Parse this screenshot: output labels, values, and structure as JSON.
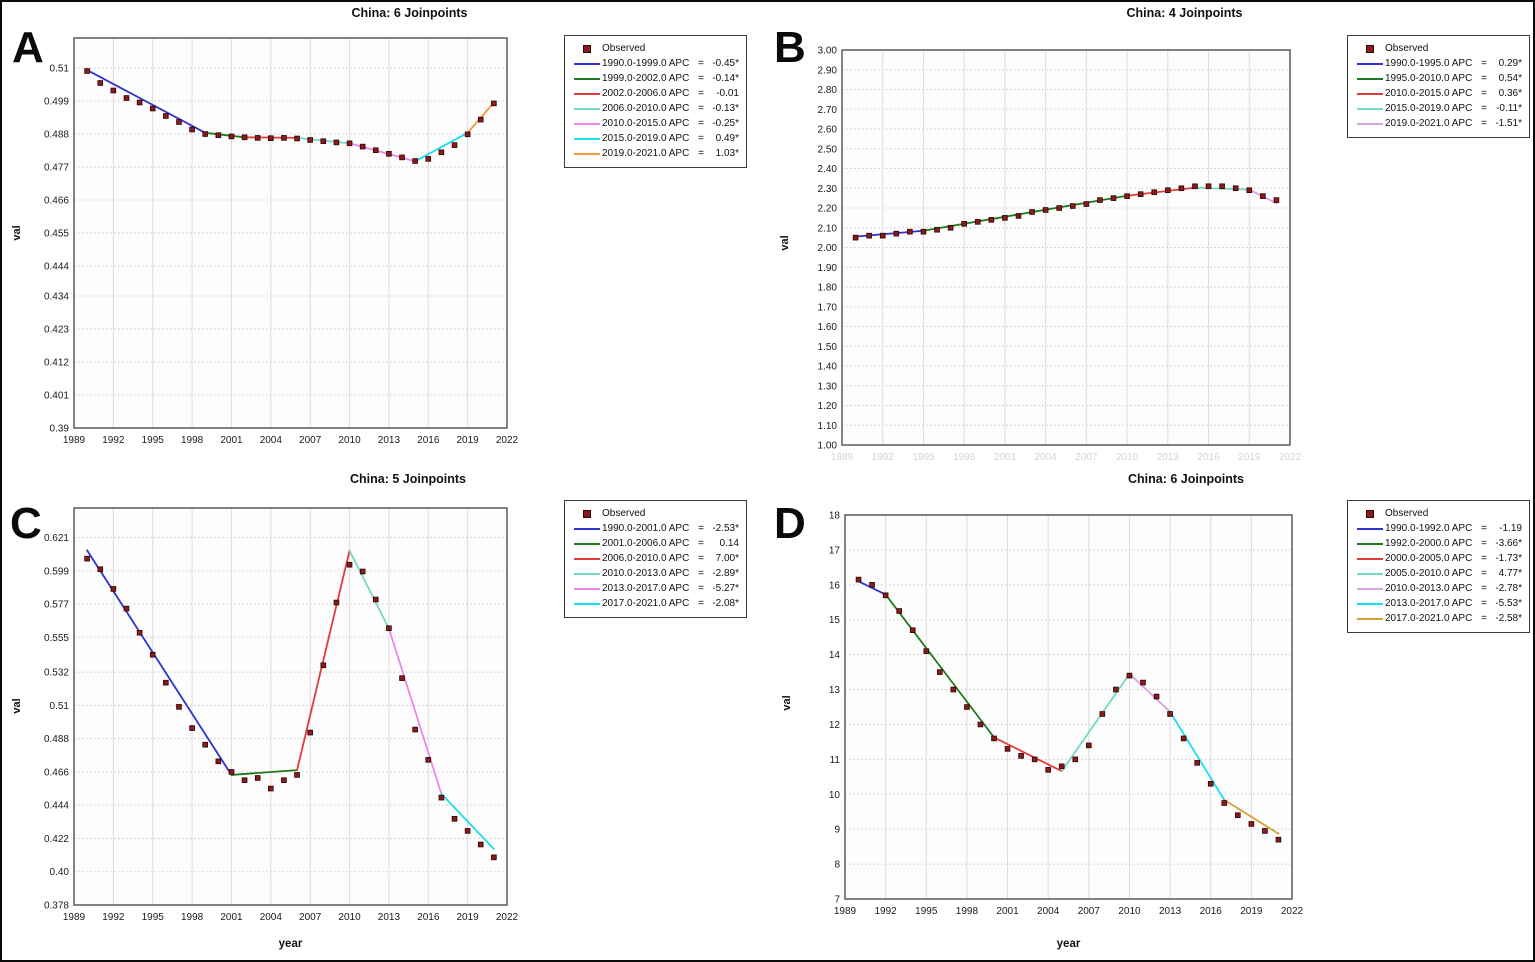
{
  "figure": {
    "background": "#ffffff",
    "border_color": "#0a0a0a",
    "observed_marker_color": "#8b1a1a"
  },
  "chart_data": [
    {
      "type": "line",
      "panel_label": "A",
      "title": "China: 6 Joinpoints",
      "xlabel": "",
      "ylabel": "val",
      "legend_observed_label": "Observed",
      "xlim": [
        1989,
        2022
      ],
      "ylim": [
        0.39,
        0.52
      ],
      "x_ticks": [
        1989,
        1992,
        1995,
        1998,
        2001,
        2004,
        2007,
        2010,
        2013,
        2016,
        2019,
        2022
      ],
      "x_tick_faint": false,
      "y_ticks": [
        "0.51",
        "0.499",
        "0.488",
        "0.477",
        "0.466",
        "0.455",
        "0.444",
        "0.434",
        "0.423",
        "0.412",
        "0.401",
        "0.39"
      ],
      "years": [
        1990,
        1991,
        1992,
        1993,
        1994,
        1995,
        1996,
        1997,
        1998,
        1999,
        2000,
        2001,
        2002,
        2003,
        2004,
        2005,
        2006,
        2007,
        2008,
        2009,
        2010,
        2011,
        2012,
        2013,
        2014,
        2015,
        2016,
        2017,
        2018,
        2019,
        2020,
        2021
      ],
      "values": [
        0.509,
        0.505,
        0.5025,
        0.5,
        0.4985,
        0.4965,
        0.494,
        0.492,
        0.4895,
        0.488,
        0.4876,
        0.4872,
        0.4869,
        0.4867,
        0.4866,
        0.4867,
        0.4865,
        0.486,
        0.4856,
        0.4852,
        0.4849,
        0.4838,
        0.4826,
        0.4814,
        0.4802,
        0.479,
        0.4797,
        0.4819,
        0.4843,
        0.4879,
        0.4928,
        0.4982
      ],
      "segments": [
        {
          "label": "1990.0-1999.0 APC",
          "value": "-0.45*",
          "color": "#3032cf",
          "x1": 1990,
          "y1": 0.5093,
          "x2": 1999,
          "y2": 0.4884
        },
        {
          "label": "1999.0-2002.0 APC",
          "value": "-0.14*",
          "color": "#1f7a1f",
          "x1": 1999,
          "y1": 0.4884,
          "x2": 2002,
          "y2": 0.4869
        },
        {
          "label": "2002.0-2006.0 APC",
          "value": "-0.01",
          "color": "#e23b3b",
          "x1": 2002,
          "y1": 0.4869,
          "x2": 2006,
          "y2": 0.4867
        },
        {
          "label": "2006.0-2010.0 APC",
          "value": "-0.13*",
          "color": "#74d7c8",
          "x1": 2006,
          "y1": 0.4867,
          "x2": 2010,
          "y2": 0.4849
        },
        {
          "label": "2010.0-2015.0 APC",
          "value": "-0.25*",
          "color": "#ee85ee",
          "x1": 2010,
          "y1": 0.4849,
          "x2": 2015,
          "y2": 0.4789
        },
        {
          "label": "2015.0-2019.0 APC",
          "value": "0.49*",
          "color": "#19dff0",
          "x1": 2015,
          "y1": 0.4789,
          "x2": 2019,
          "y2": 0.4884
        },
        {
          "label": "2019.0-2021.0 APC",
          "value": "1.03*",
          "color": "#f59a3d",
          "x1": 2019,
          "y1": 0.4884,
          "x2": 2021,
          "y2": 0.4985
        }
      ]
    },
    {
      "type": "line",
      "panel_label": "B",
      "title": "China: 4 Joinpoints",
      "xlabel": "",
      "ylabel": "val",
      "legend_observed_label": "Observed",
      "xlim": [
        1989,
        2022
      ],
      "ylim": [
        1.0,
        3.0
      ],
      "x_ticks": [
        1989,
        1992,
        1995,
        1998,
        2001,
        2004,
        2007,
        2010,
        2013,
        2016,
        2019,
        2022
      ],
      "x_tick_faint": true,
      "y_ticks": [
        "3.00",
        "2.90",
        "2.80",
        "2.70",
        "2.60",
        "2.50",
        "2.40",
        "2.30",
        "2.20",
        "2.10",
        "2.00",
        "1.90",
        "1.80",
        "1.70",
        "1.60",
        "1.50",
        "1.40",
        "1.30",
        "1.20",
        "1.10",
        "1.00"
      ],
      "years": [
        1990,
        1991,
        1992,
        1993,
        1994,
        1995,
        1996,
        1997,
        1998,
        1999,
        2000,
        2001,
        2002,
        2003,
        2004,
        2005,
        2006,
        2007,
        2008,
        2009,
        2010,
        2011,
        2012,
        2013,
        2014,
        2015,
        2016,
        2017,
        2018,
        2019,
        2020,
        2021
      ],
      "values": [
        2.05,
        2.06,
        2.06,
        2.07,
        2.08,
        2.08,
        2.09,
        2.1,
        2.12,
        2.13,
        2.14,
        2.15,
        2.16,
        2.18,
        2.19,
        2.2,
        2.21,
        2.22,
        2.24,
        2.25,
        2.26,
        2.27,
        2.28,
        2.29,
        2.3,
        2.31,
        2.31,
        2.31,
        2.3,
        2.29,
        2.26,
        2.24
      ],
      "segments": [
        {
          "label": "1990.0-1995.0 APC",
          "value": "0.29*",
          "color": "#3032cf",
          "x1": 1990,
          "y1": 2.055,
          "x2": 1995,
          "y2": 2.085
        },
        {
          "label": "1995.0-2010.0 APC",
          "value": "0.54*",
          "color": "#1f7a1f",
          "x1": 1995,
          "y1": 2.085,
          "x2": 2010,
          "y2": 2.262
        },
        {
          "label": "2010.0-2015.0 APC",
          "value": "0.36*",
          "color": "#e23b3b",
          "x1": 2010,
          "y1": 2.262,
          "x2": 2015,
          "y2": 2.303
        },
        {
          "label": "2015.0-2019.0 APC",
          "value": "-0.11*",
          "color": "#74d7c8",
          "x1": 2015,
          "y1": 2.303,
          "x2": 2019,
          "y2": 2.293
        },
        {
          "label": "2019.0-2021.0 APC",
          "value": "-1.51*",
          "color": "#d9a2de",
          "x1": 2019,
          "y1": 2.293,
          "x2": 2021,
          "y2": 2.224
        }
      ]
    },
    {
      "type": "line",
      "panel_label": "C",
      "title": "China: 5 Joinpoints",
      "xlabel": "year",
      "ylabel": "val",
      "legend_observed_label": "Observed",
      "xlim": [
        1989,
        2022
      ],
      "ylim": [
        0.378,
        0.6405
      ],
      "x_ticks": [
        1989,
        1992,
        1995,
        1998,
        2001,
        2004,
        2007,
        2010,
        2013,
        2016,
        2019,
        2022
      ],
      "x_tick_faint": false,
      "y_ticks": [
        "0.621",
        "0.599",
        "0.577",
        "0.555",
        "0.532",
        "0.51",
        "0.488",
        "0.466",
        "0.444",
        "0.422",
        "0.40",
        "0.378"
      ],
      "years": [
        1990,
        1991,
        1992,
        1993,
        1994,
        1995,
        1996,
        1997,
        1998,
        1999,
        2000,
        2001,
        2002,
        2003,
        2004,
        2005,
        2006,
        2007,
        2008,
        2009,
        2010,
        2011,
        2012,
        2013,
        2014,
        2015,
        2016,
        2017,
        2018,
        2019,
        2020,
        2021
      ],
      "values": [
        0.607,
        0.6,
        0.587,
        0.574,
        0.558,
        0.5435,
        0.525,
        0.509,
        0.495,
        0.484,
        0.473,
        0.466,
        0.4605,
        0.462,
        0.455,
        0.4605,
        0.464,
        0.492,
        0.5365,
        0.578,
        0.603,
        0.5985,
        0.58,
        0.561,
        0.528,
        0.494,
        0.474,
        0.449,
        0.435,
        0.427,
        0.418,
        0.4095
      ],
      "segments": [
        {
          "label": "1990.0-2001.0 APC",
          "value": "-2.53*",
          "color": "#3032cf",
          "x1": 1990,
          "y1": 0.6125,
          "x2": 2001,
          "y2": 0.464
        },
        {
          "label": "2001.0-2006.0 APC",
          "value": "0.14",
          "color": "#1f7a1f",
          "x1": 2001,
          "y1": 0.464,
          "x2": 2006,
          "y2": 0.4672
        },
        {
          "label": "2006.0-2010.0 APC",
          "value": "7.00*",
          "color": "#e23b3b",
          "x1": 2006,
          "y1": 0.4672,
          "x2": 2010,
          "y2": 0.6123
        },
        {
          "label": "2010.0-2013.0 APC",
          "value": "-2.89*",
          "color": "#74d7c8",
          "x1": 2010,
          "y1": 0.6123,
          "x2": 2013,
          "y2": 0.5608
        },
        {
          "label": "2013.0-2017.0 APC",
          "value": "-5.27*",
          "color": "#ee85ee",
          "x1": 2013,
          "y1": 0.5608,
          "x2": 2017,
          "y2": 0.4515
        },
        {
          "label": "2017.0-2021.0 APC",
          "value": "-2.08*",
          "color": "#19dff0",
          "x1": 2017,
          "y1": 0.4515,
          "x2": 2021,
          "y2": 0.415
        }
      ]
    },
    {
      "type": "line",
      "panel_label": "D",
      "title": "China: 6 Joinpoints",
      "xlabel": "year",
      "ylabel": "val",
      "legend_observed_label": "Observed",
      "xlim": [
        1989,
        2022
      ],
      "ylim": [
        7,
        18
      ],
      "x_ticks": [
        1989,
        1992,
        1995,
        1998,
        2001,
        2004,
        2007,
        2010,
        2013,
        2016,
        2019,
        2022
      ],
      "x_tick_faint": false,
      "y_ticks": [
        "18",
        "17",
        "16",
        "15",
        "14",
        "13",
        "12",
        "11",
        "10",
        "9",
        "8",
        "7"
      ],
      "years": [
        1990,
        1991,
        1992,
        1993,
        1994,
        1995,
        1996,
        1997,
        1998,
        1999,
        2000,
        2001,
        2002,
        2003,
        2004,
        2005,
        2006,
        2007,
        2008,
        2009,
        2010,
        2011,
        2012,
        2013,
        2014,
        2015,
        2016,
        2017,
        2018,
        2019,
        2020,
        2021
      ],
      "values": [
        16.15,
        16.0,
        15.7,
        15.25,
        14.7,
        14.1,
        13.5,
        13.0,
        12.5,
        12.0,
        11.6,
        11.3,
        11.1,
        11.0,
        10.7,
        10.8,
        11.0,
        11.4,
        12.3,
        13.0,
        13.4,
        13.2,
        12.8,
        12.3,
        11.6,
        10.9,
        10.3,
        9.75,
        9.4,
        9.15,
        8.95,
        8.7
      ],
      "segments": [
        {
          "label": "1990.0-1992.0 APC",
          "value": "-1.19",
          "color": "#3032cf",
          "x1": 1990,
          "y1": 16.1,
          "x2": 1992,
          "y2": 15.72
        },
        {
          "label": "1992.0-2000.0 APC",
          "value": "-3.66*",
          "color": "#1f7a1f",
          "x1": 1992,
          "y1": 15.72,
          "x2": 2000,
          "y2": 11.63
        },
        {
          "label": "2000.0-2005.0 APC",
          "value": "-1.73*",
          "color": "#e23b3b",
          "x1": 2000,
          "y1": 11.63,
          "x2": 2005,
          "y2": 10.66
        },
        {
          "label": "2005.0-2010.0 APC",
          "value": "4.77*",
          "color": "#74d7c8",
          "x1": 2005,
          "y1": 10.66,
          "x2": 2010,
          "y2": 13.45
        },
        {
          "label": "2010.0-2013.0 APC",
          "value": "-2.78*",
          "color": "#d9a2de",
          "x1": 2010,
          "y1": 13.45,
          "x2": 2013,
          "y2": 12.36
        },
        {
          "label": "2013.0-2017.0 APC",
          "value": "-5.53*",
          "color": "#19dff0",
          "x1": 2013,
          "y1": 12.36,
          "x2": 2017,
          "y2": 9.84
        },
        {
          "label": "2017.0-2021.0 APC",
          "value": "-2.58*",
          "color": "#d4a02f",
          "x1": 2017,
          "y1": 9.84,
          "x2": 2021,
          "y2": 8.87
        }
      ]
    }
  ]
}
